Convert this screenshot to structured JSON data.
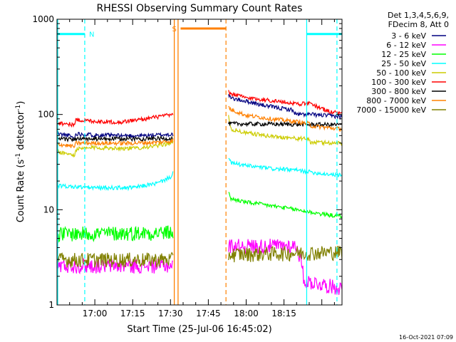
{
  "chart_data": {
    "type": "line",
    "title": "RHESSI Observing Summary Count Rates",
    "xlabel": "Start Time (25-Jul-06 16:45:02)",
    "ylabel_main": "Count Rate (s",
    "ylabel_sup1": "-1",
    "ylabel_mid": " detector",
    "ylabel_sup2": "-1",
    "ylabel_end": ")",
    "yscale": "log",
    "ylim": [
      1,
      1000
    ],
    "xlim_minutes": [
      -15,
      98
    ],
    "x_tick_labels": [
      "17:00",
      "17:15",
      "17:30",
      "17:45",
      "18:00",
      "18:15"
    ],
    "x_tick_minutes": [
      0,
      15,
      30,
      45,
      60,
      75
    ],
    "y_tick_labels": [
      "1",
      "10",
      "100",
      "1000"
    ],
    "y_tick_values": [
      1,
      10,
      100,
      1000
    ],
    "legend_header": [
      "Det 1,3,4,5,6,9,",
      "FDecim 8, Att 0"
    ],
    "legend_position": "right",
    "footer": "16-Oct-2021 07:09",
    "series": [
      {
        "name": "3 - 6 keV",
        "color": "#000080",
        "segments": [
          {
            "start": -15,
            "end": 31,
            "x": [
              -15,
              -10,
              -8,
              -7.5,
              0,
              10,
              20,
              31
            ],
            "y": [
              63,
              60,
              56,
              63,
              61,
              60,
              60,
              62
            ]
          },
          {
            "start": 53,
            "end": 98,
            "x": [
              53,
              54,
              60,
              66,
              72,
              78,
              80,
              86,
              93,
              98
            ],
            "y": [
              158,
              148,
              138,
              126,
              118,
              112,
              100,
              100,
              97,
              95
            ]
          }
        ]
      },
      {
        "name": "6 - 12 keV",
        "color": "#ff00ff",
        "segments": [
          {
            "start": -15,
            "end": 31,
            "x": [
              -15,
              31
            ],
            "y": [
              2.6,
              2.6
            ]
          },
          {
            "start": 53,
            "end": 98,
            "x": [
              53,
              80,
              83,
              98
            ],
            "y": [
              4.2,
              4.2,
              1.8,
              1.5
            ]
          }
        ]
      },
      {
        "name": "12 - 25 keV",
        "color": "#00ff00",
        "segments": [
          {
            "start": -15,
            "end": 31,
            "x": [
              -15,
              31
            ],
            "y": [
              5.6,
              5.8
            ]
          },
          {
            "start": 53,
            "end": 98,
            "x": [
              53,
              54,
              60,
              70,
              80,
              90,
              98
            ],
            "y": [
              15,
              13,
              12,
              11,
              10,
              9,
              8.5
            ]
          }
        ]
      },
      {
        "name": "25 - 50 keV",
        "color": "#00ffff",
        "segments": [
          {
            "start": -15,
            "end": 31,
            "x": [
              -15,
              -10,
              0,
              15,
              25,
              30,
              31
            ],
            "y": [
              18,
              17.5,
              17,
              17,
              19,
              22,
              25
            ]
          },
          {
            "start": 53,
            "end": 98,
            "x": [
              53,
              54,
              60,
              70,
              80,
              90,
              98
            ],
            "y": [
              34,
              31,
              29,
              27,
              26,
              24,
              23
            ]
          }
        ]
      },
      {
        "name": "50 - 100 keV",
        "color": "#cccc00",
        "segments": [
          {
            "start": -15,
            "end": 31,
            "x": [
              -15,
              -8,
              -7.5,
              0,
              15,
              25,
              31
            ],
            "y": [
              41,
              37,
              43,
              45,
              44,
              47,
              51
            ]
          },
          {
            "start": 53,
            "end": 98,
            "x": [
              53,
              54,
              60,
              70,
              80,
              85,
              85.5,
              98
            ],
            "y": [
              95,
              70,
              64,
              59,
              56,
              55,
              51,
              50
            ]
          }
        ]
      },
      {
        "name": "100 - 300 keV",
        "color": "#ff0000",
        "segments": [
          {
            "start": -15,
            "end": 31,
            "x": [
              -15,
              -8,
              -7.5,
              0,
              10,
              20,
              31
            ],
            "y": [
              82,
              78,
              88,
              85,
              83,
              90,
              100
            ]
          },
          {
            "start": 53,
            "end": 98,
            "x": [
              53,
              54,
              60,
              70,
              80,
              85,
              93,
              98
            ],
            "y": [
              172,
              165,
              150,
              140,
              130,
              130,
              107,
              103
            ]
          }
        ]
      },
      {
        "name": "300 - 800 keV",
        "color": "#000000",
        "segments": [
          {
            "start": -15,
            "end": 31,
            "x": [
              -15,
              31
            ],
            "y": [
              55,
              56
            ]
          },
          {
            "start": 53,
            "end": 98,
            "x": [
              53,
              98
            ],
            "y": [
              80,
              78
            ]
          }
        ]
      },
      {
        "name": "800 - 7000 keV",
        "color": "#ff8000",
        "segments": [
          {
            "start": -15,
            "end": 31,
            "x": [
              -15,
              -8,
              -7.5,
              0,
              15,
              25,
              31
            ],
            "y": [
              49,
              46,
              50,
              50,
              50,
              51,
              53
            ]
          },
          {
            "start": 53,
            "end": 98,
            "x": [
              53,
              54,
              60,
              70,
              80,
              85,
              85.5,
              98
            ],
            "y": [
              120,
              112,
              98,
              90,
              84,
              80,
              76,
              70
            ]
          }
        ]
      },
      {
        "name": "7000 - 15000 keV",
        "color": "#808000",
        "segments": [
          {
            "start": -15,
            "end": 31,
            "x": [
              -15,
              31
            ],
            "y": [
              3.0,
              3.0
            ]
          },
          {
            "start": 53,
            "end": 98,
            "x": [
              53,
              98
            ],
            "y": [
              3.4,
              3.6
            ]
          }
        ]
      }
    ],
    "annotations": [
      {
        "label": "N",
        "color": "#00ffff",
        "start": -15,
        "end": -4,
        "y": 700
      },
      {
        "label": "S",
        "color": "#ff8000",
        "start": 34,
        "end": 52,
        "y": 800
      },
      {
        "label": "",
        "color": "#00ffff",
        "start": 84,
        "end": 98,
        "y": 700
      }
    ]
  }
}
